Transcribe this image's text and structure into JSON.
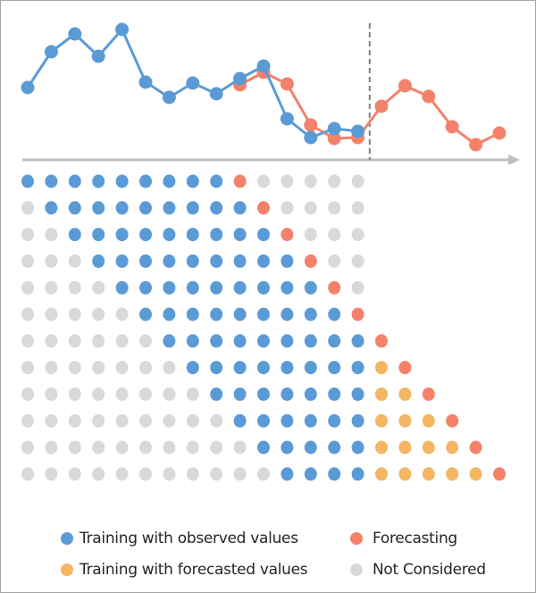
{
  "colors": {
    "observed": "#5b9bd5",
    "forecast": "#f4826a",
    "forecasted_training": "#f4b662",
    "not_considered": "#d9d9d9",
    "axis": "#bfbfbf",
    "split_line": "#7f7f7f"
  },
  "chart_data": {
    "type": "line",
    "title": "",
    "xlabel": "",
    "ylabel": "",
    "series": [
      {
        "role": "observed",
        "color": "#5b9bd5",
        "x": [
          0,
          1,
          2,
          3,
          4,
          5,
          6,
          7,
          8,
          9,
          10,
          11,
          12,
          13,
          14
        ],
        "values": [
          81,
          121,
          141,
          116,
          146,
          87,
          70,
          86,
          74,
          91,
          105,
          46,
          25,
          35,
          32
        ]
      },
      {
        "role": "forecast",
        "color": "#f4826a",
        "x": [
          9,
          10,
          11,
          12,
          13,
          14,
          15,
          16,
          17,
          18,
          19,
          20
        ],
        "values": [
          84,
          98,
          85,
          39,
          24,
          25,
          60,
          83,
          71,
          37,
          17,
          30
        ]
      }
    ],
    "split_after_x": 14,
    "grid": false,
    "axis_arrow": true
  },
  "window_grid": {
    "legend_codes": {
      "G": "not_considered",
      "B": "observed",
      "Y": "forecasted_training",
      "O": "forecast"
    },
    "rows": [
      "BBBBBBBBBOGGGGG",
      "GBBBBBBBBBOGGGG",
      "GGBBBBBBBBBOGGG",
      "GGGBBBBBBBBBOGG",
      "GGGGBBBBBBBBBOG",
      "GGGGGBBBBBBBBBO",
      "GGGGGGBBBBBBBBBO",
      "GGGGGGGBBBBBBBBYO",
      "GGGGGGGGBBBBBBBYYO",
      "GGGGGGGGGBBBBBBYYYO",
      "GGGGGGGGGGBBBBBYYYYO",
      "GGGGGGGGGGGBBBBYYYYYO"
    ]
  },
  "legend": {
    "observed": "Training with observed values",
    "forecast": "Forecasting",
    "forecasted_training": "Training with forecasted values",
    "not_considered": "Not Considered"
  }
}
